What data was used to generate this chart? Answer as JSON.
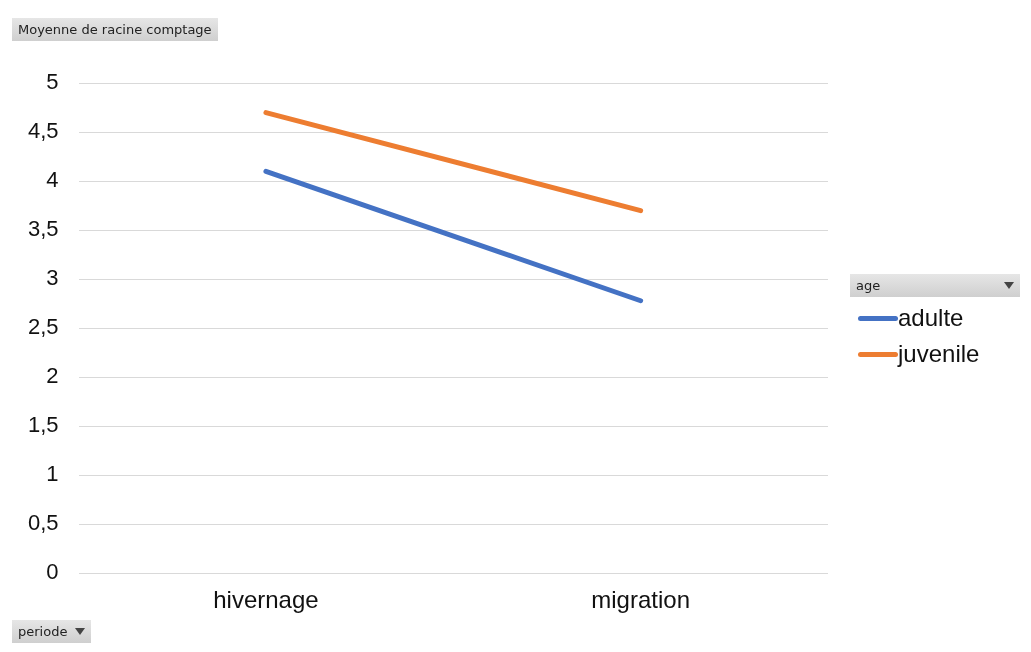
{
  "chart_data": {
    "type": "line",
    "ylabel": "Moyenne de racine comptage",
    "xlabel": "periode",
    "legend_title": "age",
    "categories": [
      "hivernage",
      "migration"
    ],
    "series": [
      {
        "name": "adulte",
        "color": "#4472c4",
        "values": [
          4.1,
          2.78
        ]
      },
      {
        "name": "juvenile",
        "color": "#ed7d31",
        "values": [
          4.7,
          3.7
        ]
      }
    ],
    "ylim": [
      0,
      5
    ],
    "yticks": [
      0,
      {
        "value": 0.5,
        "label": "0,5"
      },
      1,
      {
        "value": 1.5,
        "label": "1,5"
      },
      2,
      {
        "value": 2.5,
        "label": "2,5"
      },
      3,
      {
        "value": 3.5,
        "label": "3,5"
      },
      4,
      {
        "value": 4.5,
        "label": "4,5"
      },
      5
    ],
    "grid": "y",
    "legend": "right",
    "line_style": "solid"
  }
}
